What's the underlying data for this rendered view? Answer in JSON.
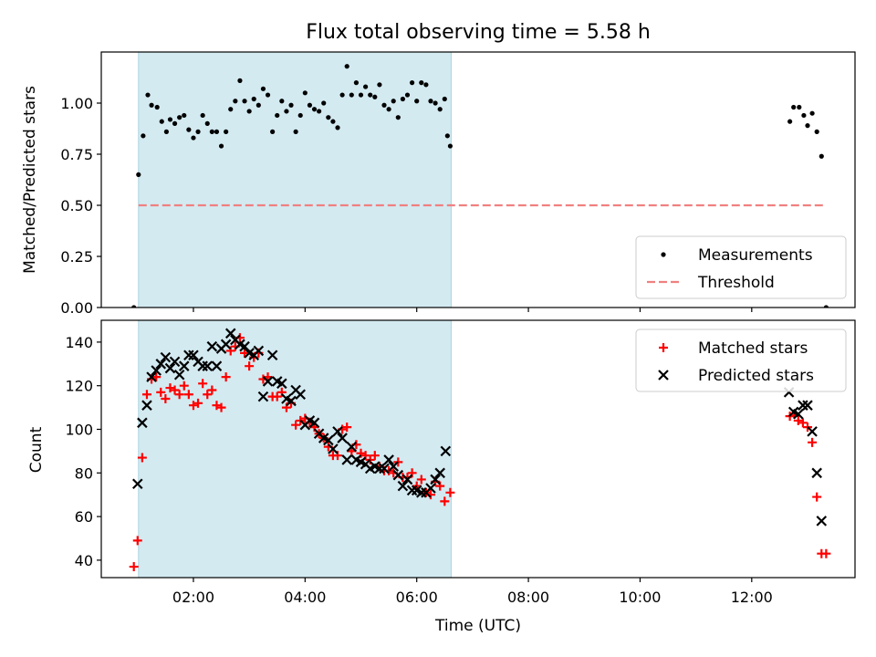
{
  "chart_data": [
    {
      "type": "scatter",
      "title": "Flux total observing time = 5.58 h",
      "xlabel": "",
      "ylabel": "Matched/Predicted stars",
      "x_unit": "hours UTC",
      "xlim": [
        "00:21",
        "13:51"
      ],
      "ylim": [
        0,
        1.25
      ],
      "yticks": [
        "0.00",
        "0.25",
        "0.50",
        "0.75",
        "1.00"
      ],
      "shaded_interval": [
        "01:01",
        "06:37"
      ],
      "shade_color": "#d3eaf1",
      "legend_position": "lower-right",
      "series": [
        {
          "name": "Measurements",
          "marker": "dot",
          "color": "#000000",
          "points": [
            [
              "00:56",
              0.0
            ],
            [
              "01:01",
              0.65
            ],
            [
              "01:06",
              0.84
            ],
            [
              "01:11",
              1.04
            ],
            [
              "01:15",
              0.99
            ],
            [
              "01:21",
              0.98
            ],
            [
              "01:26",
              0.91
            ],
            [
              "01:31",
              0.86
            ],
            [
              "01:35",
              0.92
            ],
            [
              "01:40",
              0.9
            ],
            [
              "01:45",
              0.93
            ],
            [
              "01:50",
              0.94
            ],
            [
              "01:55",
              0.87
            ],
            [
              "02:00",
              0.83
            ],
            [
              "02:05",
              0.86
            ],
            [
              "02:10",
              0.94
            ],
            [
              "02:15",
              0.9
            ],
            [
              "02:20",
              0.86
            ],
            [
              "02:25",
              0.86
            ],
            [
              "02:30",
              0.79
            ],
            [
              "02:35",
              0.86
            ],
            [
              "02:40",
              0.97
            ],
            [
              "02:45",
              1.01
            ],
            [
              "02:50",
              1.11
            ],
            [
              "02:55",
              1.01
            ],
            [
              "03:00",
              0.96
            ],
            [
              "03:05",
              1.02
            ],
            [
              "03:10",
              0.99
            ],
            [
              "03:15",
              1.07
            ],
            [
              "03:20",
              1.04
            ],
            [
              "03:25",
              0.86
            ],
            [
              "03:30",
              0.94
            ],
            [
              "03:35",
              1.01
            ],
            [
              "03:40",
              0.96
            ],
            [
              "03:45",
              0.99
            ],
            [
              "03:50",
              0.86
            ],
            [
              "03:55",
              0.94
            ],
            [
              "04:00",
              1.05
            ],
            [
              "04:05",
              0.99
            ],
            [
              "04:10",
              0.97
            ],
            [
              "04:15",
              0.96
            ],
            [
              "04:20",
              1.0
            ],
            [
              "04:25",
              0.93
            ],
            [
              "04:30",
              0.91
            ],
            [
              "04:35",
              0.88
            ],
            [
              "04:40",
              1.04
            ],
            [
              "04:45",
              1.18
            ],
            [
              "04:50",
              1.04
            ],
            [
              "04:55",
              1.1
            ],
            [
              "05:00",
              1.04
            ],
            [
              "05:05",
              1.08
            ],
            [
              "05:10",
              1.04
            ],
            [
              "05:15",
              1.03
            ],
            [
              "05:20",
              1.09
            ],
            [
              "05:25",
              0.99
            ],
            [
              "05:30",
              0.97
            ],
            [
              "05:35",
              1.01
            ],
            [
              "05:40",
              0.93
            ],
            [
              "05:45",
              1.02
            ],
            [
              "05:50",
              1.04
            ],
            [
              "05:55",
              1.1
            ],
            [
              "06:00",
              1.01
            ],
            [
              "06:05",
              1.1
            ],
            [
              "06:10",
              1.09
            ],
            [
              "06:15",
              1.01
            ],
            [
              "06:20",
              1.0
            ],
            [
              "06:25",
              0.97
            ],
            [
              "06:30",
              1.02
            ],
            [
              "06:33",
              0.84
            ],
            [
              "06:36",
              0.79
            ],
            [
              "12:41",
              0.91
            ],
            [
              "12:45",
              0.98
            ],
            [
              "12:51",
              0.98
            ],
            [
              "12:56",
              0.94
            ],
            [
              "13:00",
              0.89
            ],
            [
              "13:05",
              0.95
            ],
            [
              "13:10",
              0.86
            ],
            [
              "13:15",
              0.74
            ],
            [
              "13:20",
              0.0
            ]
          ]
        },
        {
          "name": "Threshold",
          "marker": "dashed-line",
          "color": "#f08080",
          "points": [
            [
              "01:01",
              0.5
            ],
            [
              "13:20",
              0.5
            ]
          ]
        }
      ]
    },
    {
      "type": "scatter",
      "title": "",
      "xlabel": "Time (UTC)",
      "ylabel": "Count",
      "x_unit": "hours UTC",
      "xlim": [
        "00:21",
        "13:51"
      ],
      "ylim": [
        32,
        150
      ],
      "yticks": [
        "40",
        "60",
        "80",
        "100",
        "120",
        "140"
      ],
      "xticks": [
        "02:00",
        "04:00",
        "06:00",
        "08:00",
        "10:00",
        "12:00"
      ],
      "shaded_interval": [
        "01:01",
        "06:37"
      ],
      "shade_color": "#d3eaf1",
      "legend_position": "top-right",
      "series": [
        {
          "name": "Matched stars",
          "marker": "plus",
          "color": "#ff0000",
          "points": [
            [
              "00:56",
              37
            ],
            [
              "01:00",
              49
            ],
            [
              "01:05",
              87
            ],
            [
              "01:10",
              116
            ],
            [
              "01:15",
              123
            ],
            [
              "01:20",
              124
            ],
            [
              "01:25",
              117
            ],
            [
              "01:30",
              114
            ],
            [
              "01:35",
              119
            ],
            [
              "01:40",
              118
            ],
            [
              "01:45",
              116
            ],
            [
              "01:50",
              120
            ],
            [
              "01:55",
              116
            ],
            [
              "02:00",
              111
            ],
            [
              "02:05",
              112
            ],
            [
              "02:10",
              121
            ],
            [
              "02:15",
              116
            ],
            [
              "02:20",
              118
            ],
            [
              "02:25",
              111
            ],
            [
              "02:30",
              110
            ],
            [
              "02:35",
              124
            ],
            [
              "02:40",
              136
            ],
            [
              "02:45",
              138
            ],
            [
              "02:50",
              142
            ],
            [
              "02:55",
              135
            ],
            [
              "03:00",
              129
            ],
            [
              "03:05",
              133
            ],
            [
              "03:10",
              135
            ],
            [
              "03:15",
              123
            ],
            [
              "03:20",
              124
            ],
            [
              "03:25",
              115
            ],
            [
              "03:30",
              115
            ],
            [
              "03:35",
              117
            ],
            [
              "03:40",
              110
            ],
            [
              "03:45",
              112
            ],
            [
              "03:50",
              102
            ],
            [
              "03:55",
              104
            ],
            [
              "04:00",
              105
            ],
            [
              "04:05",
              103
            ],
            [
              "04:10",
              101
            ],
            [
              "04:15",
              98
            ],
            [
              "04:20",
              96
            ],
            [
              "04:25",
              92
            ],
            [
              "04:30",
              88
            ],
            [
              "04:35",
              88
            ],
            [
              "04:40",
              100
            ],
            [
              "04:45",
              101
            ],
            [
              "04:50",
              90
            ],
            [
              "04:55",
              93
            ],
            [
              "05:00",
              89
            ],
            [
              "05:05",
              88
            ],
            [
              "05:10",
              86
            ],
            [
              "05:15",
              88
            ],
            [
              "05:20",
              83
            ],
            [
              "05:25",
              81
            ],
            [
              "05:30",
              81
            ],
            [
              "05:35",
              80
            ],
            [
              "05:40",
              85
            ],
            [
              "05:45",
              78
            ],
            [
              "05:50",
              78
            ],
            [
              "05:55",
              80
            ],
            [
              "06:00",
              74
            ],
            [
              "06:05",
              77
            ],
            [
              "06:10",
              71
            ],
            [
              "06:15",
              70
            ],
            [
              "06:20",
              76
            ],
            [
              "06:25",
              74
            ],
            [
              "06:30",
              67
            ],
            [
              "06:36",
              71
            ],
            [
              "12:41",
              106
            ],
            [
              "12:46",
              107
            ],
            [
              "12:50",
              104
            ],
            [
              "12:55",
              103
            ],
            [
              "13:00",
              101
            ],
            [
              "13:05",
              94
            ],
            [
              "13:10",
              69
            ],
            [
              "13:15",
              43
            ],
            [
              "13:20",
              43
            ]
          ]
        },
        {
          "name": "Predicted stars",
          "marker": "x",
          "color": "#000000",
          "points": [
            [
              "01:00",
              75
            ],
            [
              "01:05",
              103
            ],
            [
              "01:10",
              111
            ],
            [
              "01:15",
              124
            ],
            [
              "01:20",
              127
            ],
            [
              "01:25",
              130
            ],
            [
              "01:30",
              133
            ],
            [
              "01:35",
              128
            ],
            [
              "01:40",
              131
            ],
            [
              "01:45",
              125
            ],
            [
              "01:50",
              129
            ],
            [
              "01:55",
              134
            ],
            [
              "02:00",
              134
            ],
            [
              "02:05",
              131
            ],
            [
              "02:10",
              129
            ],
            [
              "02:15",
              129
            ],
            [
              "02:20",
              138
            ],
            [
              "02:25",
              129
            ],
            [
              "02:30",
              137
            ],
            [
              "02:35",
              139
            ],
            [
              "02:40",
              144
            ],
            [
              "02:45",
              141
            ],
            [
              "02:50",
              139
            ],
            [
              "02:55",
              138
            ],
            [
              "03:00",
              135
            ],
            [
              "03:05",
              134
            ],
            [
              "03:10",
              136
            ],
            [
              "03:15",
              115
            ],
            [
              "03:20",
              122
            ],
            [
              "03:25",
              134
            ],
            [
              "03:30",
              122
            ],
            [
              "03:35",
              121
            ],
            [
              "03:40",
              114
            ],
            [
              "03:45",
              113
            ],
            [
              "03:50",
              118
            ],
            [
              "03:55",
              116
            ],
            [
              "04:00",
              102
            ],
            [
              "04:05",
              104
            ],
            [
              "04:10",
              103
            ],
            [
              "04:15",
              98
            ],
            [
              "04:20",
              96
            ],
            [
              "04:25",
              95
            ],
            [
              "04:30",
              91
            ],
            [
              "04:35",
              99
            ],
            [
              "04:40",
              96
            ],
            [
              "04:45",
              86
            ],
            [
              "04:50",
              92
            ],
            [
              "04:55",
              86
            ],
            [
              "05:00",
              85
            ],
            [
              "05:05",
              84
            ],
            [
              "05:10",
              82
            ],
            [
              "05:15",
              83
            ],
            [
              "05:20",
              82
            ],
            [
              "05:25",
              82
            ],
            [
              "05:30",
              86
            ],
            [
              "05:35",
              83
            ],
            [
              "05:40",
              79
            ],
            [
              "05:45",
              74
            ],
            [
              "05:50",
              77
            ],
            [
              "05:55",
              72
            ],
            [
              "06:00",
              72
            ],
            [
              "06:05",
              71
            ],
            [
              "06:10",
              71
            ],
            [
              "06:15",
              73
            ],
            [
              "06:20",
              77
            ],
            [
              "06:25",
              80
            ],
            [
              "06:31",
              90
            ],
            [
              "12:40",
              117
            ],
            [
              "12:45",
              108
            ],
            [
              "12:50",
              107
            ],
            [
              "12:55",
              111
            ],
            [
              "13:00",
              111
            ],
            [
              "13:05",
              99
            ],
            [
              "13:10",
              80
            ],
            [
              "13:15",
              58
            ]
          ]
        }
      ]
    }
  ]
}
